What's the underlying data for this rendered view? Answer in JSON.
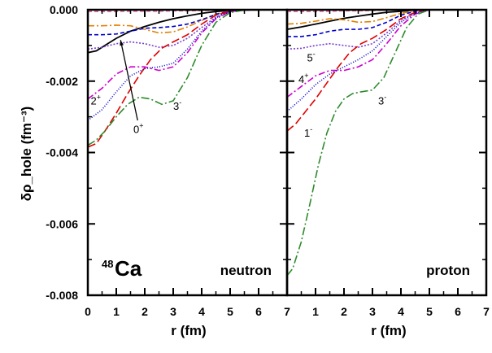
{
  "chart_data": {
    "type": "line",
    "ylabel": "δρ_hole (fm⁻³)",
    "ylim": [
      -0.008,
      0.0
    ],
    "yticks": [
      {
        "v": 0.0,
        "label": "0.000"
      },
      {
        "v": -0.002,
        "label": "-0.002"
      },
      {
        "v": -0.004,
        "label": "-0.004"
      },
      {
        "v": -0.006,
        "label": "-0.006"
      },
      {
        "v": -0.008,
        "label": "-0.008"
      }
    ],
    "panels": [
      {
        "name": "neutron",
        "label": "neutron",
        "nucleus": {
          "mass": "48",
          "symbol": "Ca"
        },
        "xlabel": "r (fm)",
        "xlim": [
          0,
          7
        ],
        "xticks": [
          "0",
          "1",
          "2",
          "3",
          "4",
          "5",
          "6"
        ],
        "series": [
          {
            "name": "0+",
            "color": "#000000",
            "dash": "",
            "x": [
              0,
              0.3,
              0.6,
              1,
              1.5,
              2,
              2.5,
              3,
              3.5,
              4,
              4.5,
              5,
              5.5,
              6
            ],
            "y": [
              -0.0012,
              -0.00115,
              -0.001,
              -0.0008,
              -0.0006,
              -0.00047,
              -0.00035,
              -0.00025,
              -0.00017,
              -0.0001,
              -5e-05,
              -2e-05,
              0,
              0
            ]
          },
          {
            "color": "#e066a0",
            "dash": "5,3",
            "x": [
              0,
              0.5,
              1,
              1.5,
              2,
              2.5,
              3,
              3.5,
              4,
              4.5,
              5,
              5.5,
              6
            ],
            "y": [
              -5e-05,
              -5e-05,
              -5e-05,
              -4e-05,
              -4e-05,
              -4e-05,
              -3e-05,
              -3e-05,
              -2e-05,
              -1e-05,
              0,
              0,
              0
            ]
          },
          {
            "color": "#e08000",
            "dash": "8,3,2,3",
            "x": [
              0,
              0.5,
              1,
              1.5,
              2,
              2.5,
              3,
              3.5,
              4,
              4.5,
              5,
              5.5,
              6
            ],
            "y": [
              -0.00045,
              -0.00045,
              -0.00043,
              -0.00045,
              -0.00055,
              -0.00065,
              -0.00062,
              -0.00048,
              -0.0003,
              -0.00012,
              -4e-05,
              -1e-05,
              0
            ]
          },
          {
            "color": "#0000cc",
            "dash": "5,3",
            "x": [
              0,
              0.5,
              1,
              1.5,
              2,
              2.5,
              3,
              3.5,
              4,
              4.5,
              5,
              5.5,
              6
            ],
            "y": [
              -0.0007,
              -0.0007,
              -0.00068,
              -0.0006,
              -0.00052,
              -0.0005,
              -0.00047,
              -0.0004,
              -0.00028,
              -0.00013,
              -4e-05,
              -1e-05,
              0
            ]
          },
          {
            "color": "#7b3fd0",
            "dash": "2,2",
            "x": [
              0,
              0.5,
              1,
              1.5,
              2,
              2.5,
              3,
              3.5,
              4,
              4.5,
              5,
              5.5,
              6
            ],
            "y": [
              -0.0011,
              -0.00105,
              -0.00095,
              -0.0009,
              -0.00095,
              -0.00105,
              -0.001,
              -0.0008,
              -0.0005,
              -0.0002,
              -5e-05,
              -1e-05,
              0
            ]
          },
          {
            "color": "#e00000",
            "dash": "10,4",
            "x": [
              0,
              0.3,
              0.6,
              1,
              1.4,
              1.8,
              2.2,
              2.6,
              3,
              3.5,
              4,
              4.5,
              5,
              5.5,
              6
            ],
            "y": [
              -0.00385,
              -0.00375,
              -0.0034,
              -0.0029,
              -0.00235,
              -0.00185,
              -0.0014,
              -0.00108,
              -0.0009,
              -0.0007,
              -0.0004,
              -0.00015,
              -4e-05,
              -1e-05,
              0
            ]
          },
          {
            "color": "#cc00cc",
            "dash": "8,3,2,3",
            "x": [
              0,
              0.5,
              1,
              1.5,
              2,
              2.5,
              3,
              3.5,
              4,
              4.5,
              5,
              5.5,
              6
            ],
            "y": [
              -0.0025,
              -0.0022,
              -0.0018,
              -0.0016,
              -0.0016,
              -0.0017,
              -0.0016,
              -0.0012,
              -0.00065,
              -0.00025,
              -5e-05,
              -1e-05,
              0
            ]
          },
          {
            "color": "#0000cc",
            "dash": "1,2",
            "x": [
              0,
              0.5,
              1,
              1.5,
              2,
              2.5,
              3,
              3.5,
              4,
              4.5,
              5,
              5.5,
              6
            ],
            "y": [
              -0.0031,
              -0.0028,
              -0.0023,
              -0.00185,
              -0.00165,
              -0.0016,
              -0.0015,
              -0.0011,
              -0.0006,
              -0.00022,
              -5e-05,
              -1e-05,
              0
            ]
          },
          {
            "name": "3-",
            "color": "#2e8b2e",
            "dash": "10,3,2,3",
            "x": [
              0,
              0.3,
              0.6,
              1,
              1.4,
              1.8,
              2.2,
              2.6,
              3,
              3.5,
              4,
              4.5,
              5,
              5.5,
              6
            ],
            "y": [
              -0.0038,
              -0.00365,
              -0.0034,
              -0.003,
              -0.00265,
              -0.00245,
              -0.0025,
              -0.00265,
              -0.00255,
              -0.0019,
              -0.001,
              -0.00035,
              -8e-05,
              -1e-05,
              0
            ]
          }
        ],
        "labels": [
          {
            "text": "2",
            "sup": "+",
            "x": 0.1,
            "y": -0.00265
          },
          {
            "text": "3",
            "sup": "-",
            "x": 3.0,
            "y": -0.0028
          },
          {
            "text": "0",
            "sup": "+",
            "x": 1.6,
            "y": -0.00345
          }
        ]
      },
      {
        "name": "proton",
        "label": "proton",
        "xlabel": "r (fm)",
        "xlim": [
          0,
          7
        ],
        "xticks": [
          "7",
          "1",
          "2",
          "3",
          "4",
          "5",
          "6",
          "7"
        ],
        "series": [
          {
            "color": "#000000",
            "dash": "",
            "x": [
              0,
              0.5,
              1,
              1.5,
              2,
              2.5,
              3,
              3.5,
              4,
              4.5,
              5,
              5.5
            ],
            "y": [
              -0.00055,
              -0.00048,
              -0.0004,
              -0.00032,
              -0.00024,
              -0.00018,
              -0.00012,
              -7e-05,
              -4e-05,
              -1e-05,
              0,
              0
            ]
          },
          {
            "color": "#e066a0",
            "dash": "5,3",
            "x": [
              0,
              0.5,
              1,
              1.5,
              2,
              2.5,
              3,
              3.5,
              4,
              4.5,
              5
            ],
            "y": [
              -5e-05,
              -5e-05,
              -5e-05,
              -4e-05,
              -3e-05,
              -3e-05,
              -2e-05,
              -1e-05,
              0,
              0,
              0
            ]
          },
          {
            "color": "#e08000",
            "dash": "8,3,2,3",
            "x": [
              0,
              0.5,
              1,
              1.5,
              2,
              2.5,
              3,
              3.5,
              4,
              4.5,
              5
            ],
            "y": [
              -0.0004,
              -0.00038,
              -0.00032,
              -0.00025,
              -0.00028,
              -0.00035,
              -0.00033,
              -0.00022,
              -0.0001,
              -3e-05,
              0
            ]
          },
          {
            "color": "#0000cc",
            "dash": "5,3",
            "x": [
              0,
              0.5,
              1,
              1.5,
              2,
              2.5,
              3,
              3.5,
              4,
              4.5,
              5
            ],
            "y": [
              -0.00075,
              -0.00075,
              -0.0007,
              -0.0006,
              -0.00055,
              -0.00055,
              -0.0005,
              -0.00035,
              -0.00015,
              -4e-05,
              0
            ]
          },
          {
            "color": "#7b3fd0",
            "dash": "2,2",
            "x": [
              0,
              0.5,
              1,
              1.5,
              2,
              2.5,
              3,
              3.5,
              4,
              4.5,
              5
            ],
            "y": [
              -0.0011,
              -0.00108,
              -0.001,
              -0.00095,
              -0.001,
              -0.00105,
              -0.00095,
              -0.00065,
              -0.0003,
              -8e-05,
              0
            ]
          },
          {
            "name": "1-",
            "color": "#e00000",
            "dash": "10,4",
            "x": [
              0,
              0.3,
              0.6,
              1,
              1.4,
              1.8,
              2.2,
              2.6,
              3,
              3.5,
              4,
              4.5,
              5
            ],
            "y": [
              -0.0034,
              -0.0032,
              -0.0029,
              -0.0025,
              -0.00205,
              -0.0016,
              -0.0012,
              -0.00095,
              -0.0008,
              -0.00055,
              -0.00025,
              -7e-05,
              0
            ]
          },
          {
            "name": "4+",
            "color": "#cc00cc",
            "dash": "8,3,2,3",
            "x": [
              0,
              0.5,
              1,
              1.5,
              2,
              2.5,
              3,
              3.5,
              4,
              4.5,
              5
            ],
            "y": [
              -0.00245,
              -0.00215,
              -0.00185,
              -0.0017,
              -0.0017,
              -0.0016,
              -0.0014,
              -0.00095,
              -0.00045,
              -0.00012,
              0
            ]
          },
          {
            "name": "5-",
            "color": "#0000cc",
            "dash": "1,2",
            "x": [
              0,
              0.5,
              1,
              1.5,
              2,
              2.5,
              3,
              3.5,
              4,
              4.5,
              5
            ],
            "y": [
              -0.00285,
              -0.0025,
              -0.0021,
              -0.0018,
              -0.0016,
              -0.0014,
              -0.00115,
              -0.00075,
              -0.00035,
              -0.0001,
              0
            ]
          },
          {
            "name": "3-",
            "color": "#2e8b2e",
            "dash": "10,3,2,3",
            "x": [
              0,
              0.2,
              0.5,
              0.8,
              1.1,
              1.4,
              1.7,
              2.0,
              2.3,
              2.6,
              3.0,
              3.4,
              3.8,
              4.2,
              4.6,
              5.0
            ],
            "y": [
              -0.00745,
              -0.00725,
              -0.0065,
              -0.00545,
              -0.00435,
              -0.00345,
              -0.00285,
              -0.0025,
              -0.00235,
              -0.0023,
              -0.00225,
              -0.0019,
              -0.0012,
              -0.0005,
              -0.00012,
              0
            ]
          }
        ],
        "labels": [
          {
            "text": "5",
            "sup": "-",
            "x": 0.7,
            "y": -0.00145
          },
          {
            "text": "4",
            "sup": "+",
            "x": 0.4,
            "y": -0.00205
          },
          {
            "text": "3",
            "sup": "-",
            "x": 3.2,
            "y": -0.00265
          },
          {
            "text": "1",
            "sup": "-",
            "x": 0.6,
            "y": -0.00355
          }
        ]
      }
    ]
  }
}
